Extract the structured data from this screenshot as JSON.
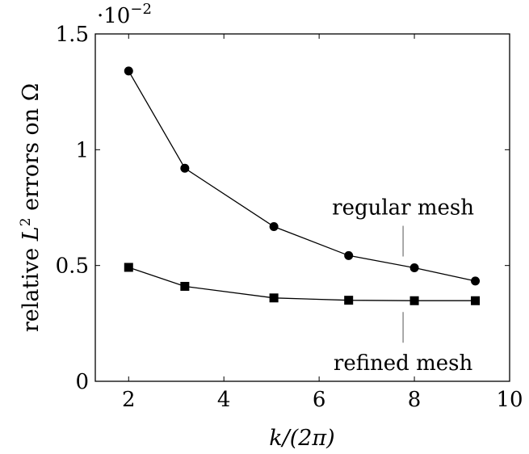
{
  "chart_data": {
    "type": "line",
    "title": "",
    "xlabel": "k/(2π)",
    "ylabel_prefix": "relative ",
    "ylabel_var": "L",
    "ylabel_sup": "2",
    "ylabel_suffix": " errors on Ω",
    "y_multiplier": {
      "base": "·10",
      "exponent": "−2"
    },
    "xlim": [
      1.3,
      10
    ],
    "ylim": [
      0,
      1.5
    ],
    "xticks": [
      2,
      4,
      6,
      8,
      10
    ],
    "yticks": [
      0,
      0.5,
      1,
      1.5
    ],
    "xtick_labels": [
      "2",
      "4",
      "6",
      "8",
      "10"
    ],
    "ytick_labels": [
      "0",
      "0.5",
      "1",
      "1.5"
    ],
    "grid": false,
    "series": [
      {
        "name": "regular mesh",
        "marker": "circle",
        "x": [
          2,
          3.18,
          5.05,
          6.62,
          8.0,
          9.28
        ],
        "y": [
          1.34,
          0.92,
          0.668,
          0.543,
          0.49,
          0.433
        ]
      },
      {
        "name": "refined mesh",
        "marker": "square",
        "x": [
          2,
          3.18,
          5.05,
          6.62,
          8.0,
          9.28
        ],
        "y": [
          0.492,
          0.41,
          0.36,
          0.35,
          0.348,
          0.348
        ]
      }
    ]
  }
}
